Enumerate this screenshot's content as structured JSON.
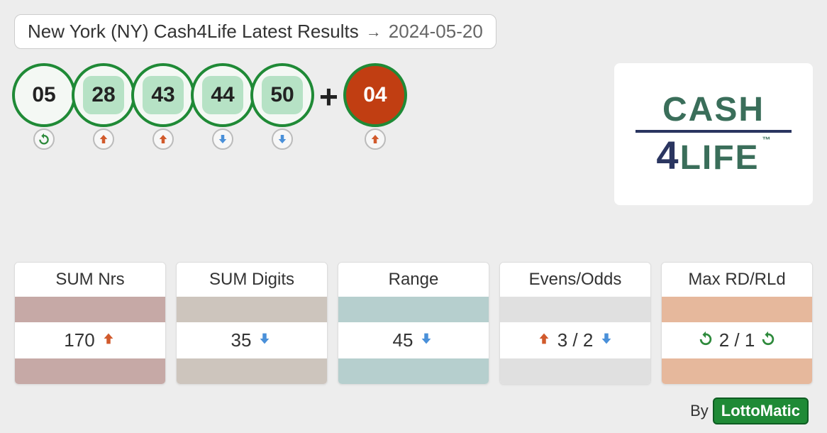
{
  "header": {
    "title": "New York (NY) Cash4Life Latest Results",
    "date": "2024-05-20"
  },
  "balls": [
    {
      "num": "05",
      "style": "plain",
      "trend": "repeat"
    },
    {
      "num": "28",
      "style": "highlight",
      "trend": "up"
    },
    {
      "num": "43",
      "style": "highlight",
      "trend": "up"
    },
    {
      "num": "44",
      "style": "highlight",
      "trend": "down"
    },
    {
      "num": "50",
      "style": "highlight",
      "trend": "down"
    }
  ],
  "bonus_ball": {
    "num": "04",
    "trend": "up"
  },
  "plus_sign": "+",
  "logo": {
    "line1": "CASH",
    "line2_digit": "4",
    "line2_word": "LIFE",
    "tm": "™"
  },
  "colors": {
    "up": "#d15a2c",
    "down": "#4a90d9",
    "repeat": "#2e8a3c",
    "ball_border": "#1f8a36",
    "ball_highlight_bg": "#b6e2c5",
    "bonus_bg": "#c13e12"
  },
  "stats": [
    {
      "title": "SUM Nrs",
      "value": "170",
      "left_icon": null,
      "right_icon": "up",
      "band_color": "#c6a9a6"
    },
    {
      "title": "SUM Digits",
      "value": "35",
      "left_icon": null,
      "right_icon": "down",
      "band_color": "#cdc5bd"
    },
    {
      "title": "Range",
      "value": "45",
      "left_icon": null,
      "right_icon": "down",
      "band_color": "#b6cfce"
    },
    {
      "title": "Evens/Odds",
      "value": "3 / 2",
      "left_icon": "up",
      "right_icon": "down",
      "band_color": "#e0e0e0"
    },
    {
      "title": "Max RD/RLd",
      "value": "2 / 1",
      "left_icon": "repeat",
      "right_icon": "repeat",
      "band_color": "#e6b89c"
    }
  ],
  "footer": {
    "by": "By",
    "brand": "LottoMatic"
  }
}
